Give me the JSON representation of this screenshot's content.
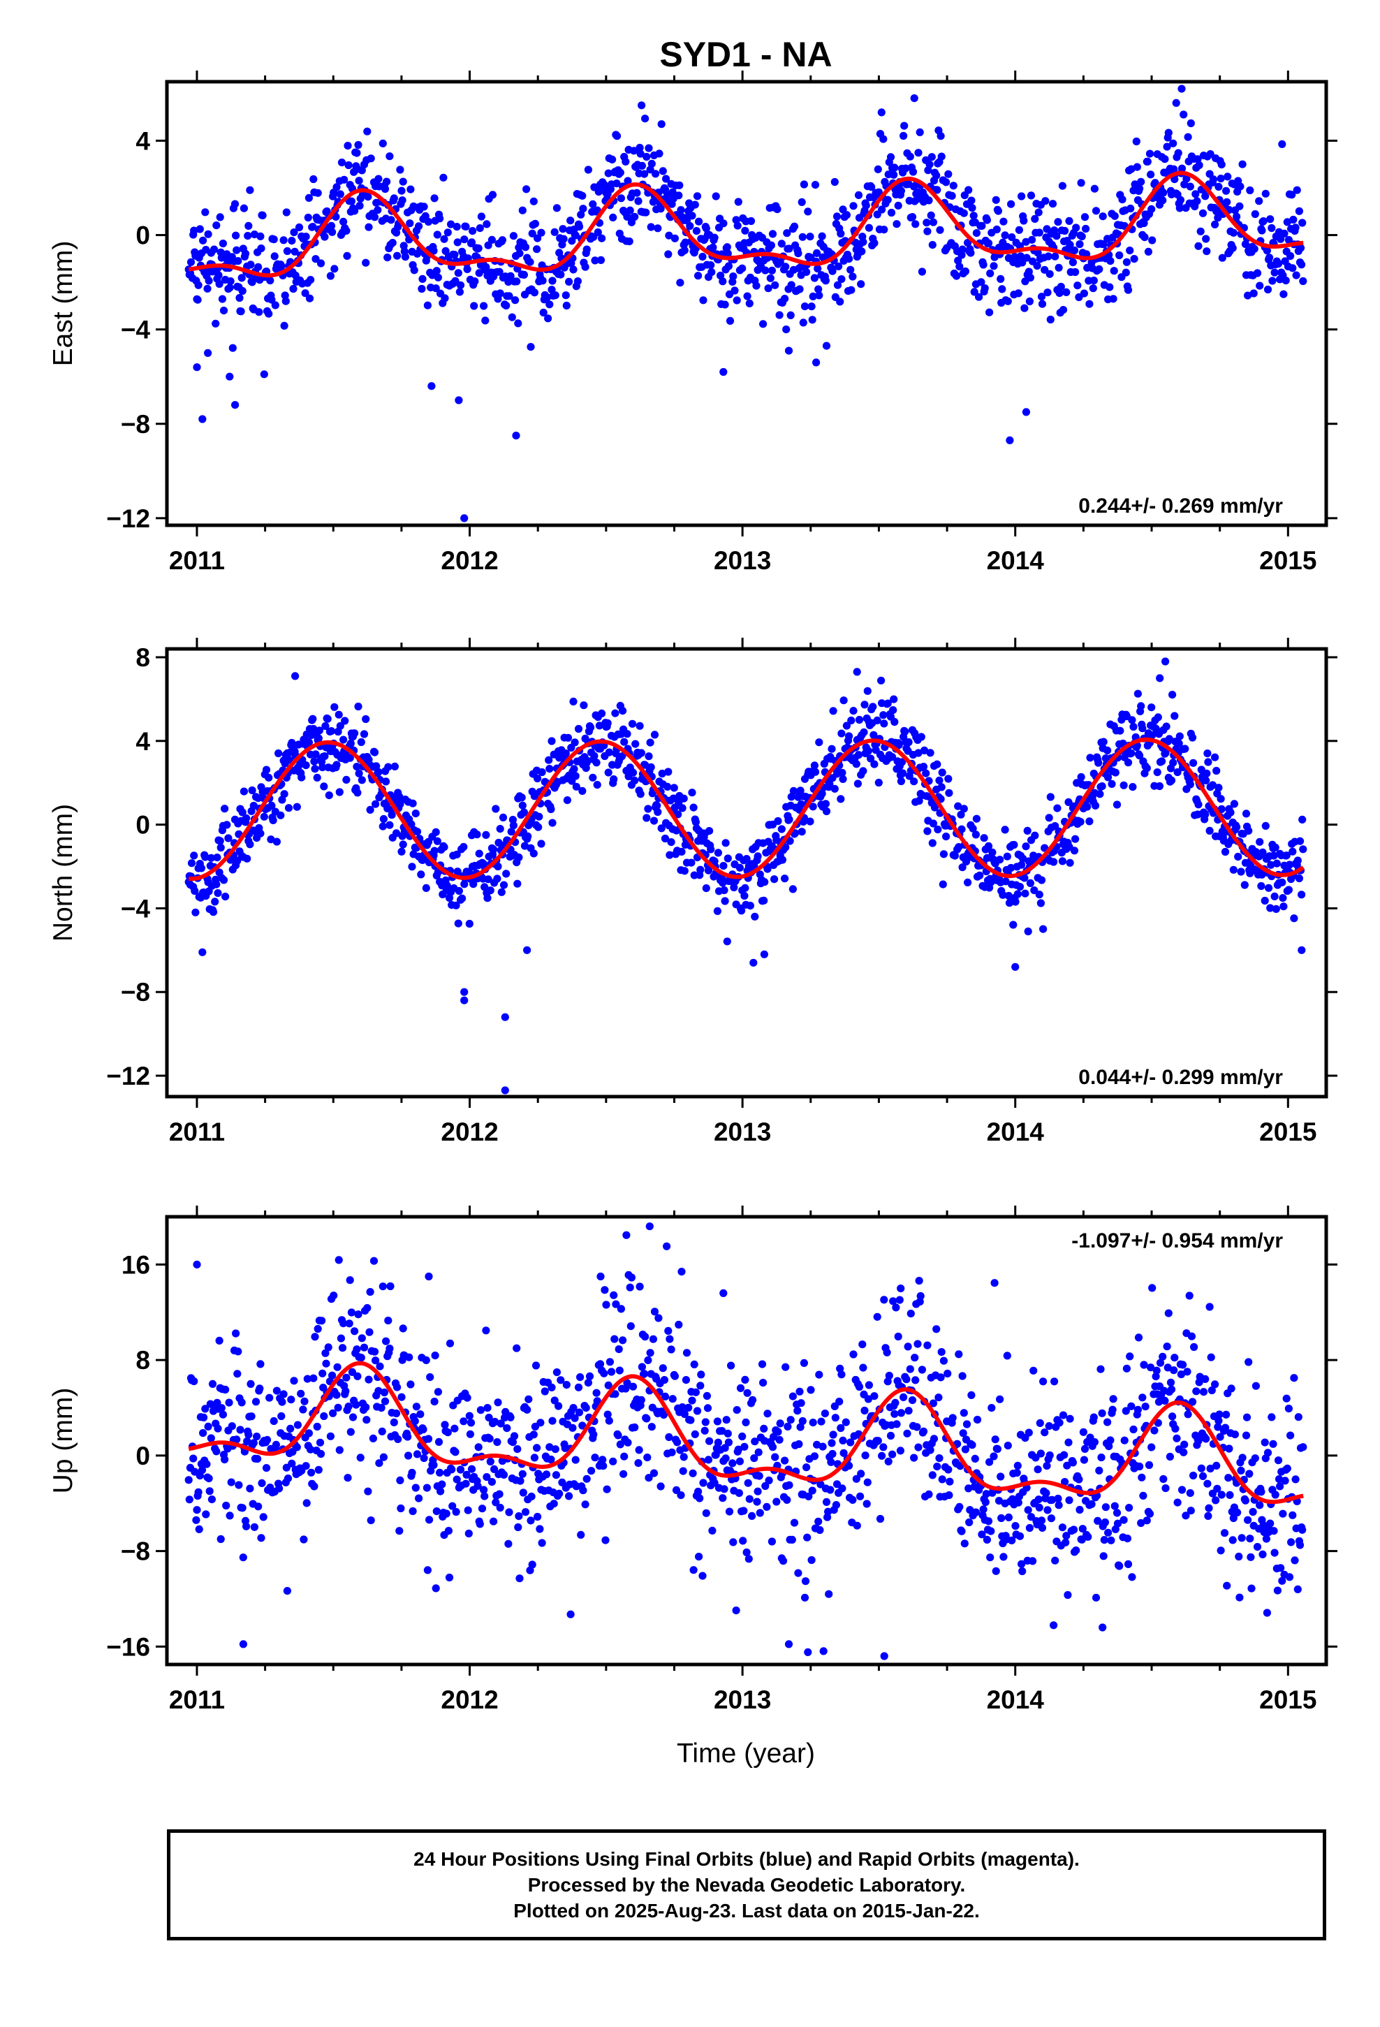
{
  "title": "SYD1 - NA",
  "xlabel": "Time (year)",
  "footer": {
    "line1": "24 Hour Positions Using Final Orbits (blue) and Rapid Orbits (magenta).",
    "line2": "Processed by the Nevada Geodetic Laboratory.",
    "line3": "Plotted on 2025-Aug-23. Last data on 2015-Jan-22."
  },
  "colors": {
    "points": "#0000ff",
    "model": "#ff0000",
    "axes": "#000000"
  },
  "chart_data": [
    {
      "type": "scatter",
      "component": "East",
      "ylabel": "East (mm)",
      "xlim": [
        2010.89,
        2015.14
      ],
      "ylim": [
        -12.3,
        6.5
      ],
      "xticks": [
        2011,
        2012,
        2013,
        2014,
        2015
      ],
      "yticks": [
        4,
        0,
        -4,
        -8,
        -12
      ],
      "rate_label": "0.244+/- 0.269 mm/yr",
      "model": {
        "offset": 0.0,
        "trend": 0.244,
        "annual": 1.55,
        "annual_peak": 0.62,
        "semiannual": 0.7,
        "semiannual_peak": 0.1
      },
      "scatter": 1.2,
      "outliers": [
        [
          2011.0,
          -5.6
        ],
        [
          2011.02,
          -7.8
        ],
        [
          2011.04,
          -5.0
        ],
        [
          2011.12,
          -6.0
        ],
        [
          2011.14,
          -7.2
        ],
        [
          2011.86,
          -6.4
        ],
        [
          2011.96,
          -7.0
        ],
        [
          2011.98,
          -12.0
        ],
        [
          2012.17,
          -8.5
        ],
        [
          2012.93,
          -5.8
        ],
        [
          2013.17,
          -4.9
        ],
        [
          2013.27,
          -5.4
        ],
        [
          2013.98,
          -8.7
        ],
        [
          2014.04,
          -7.5
        ],
        [
          2012.54,
          4.2
        ],
        [
          2012.63,
          5.5
        ],
        [
          2013.51,
          5.2
        ],
        [
          2013.63,
          5.8
        ],
        [
          2014.59,
          5.6
        ],
        [
          2014.61,
          6.2
        ]
      ]
    },
    {
      "type": "scatter",
      "component": "North",
      "ylabel": "North (mm)",
      "xlim": [
        2010.89,
        2015.14
      ],
      "ylim": [
        -13.0,
        8.4
      ],
      "xticks": [
        2011,
        2012,
        2013,
        2014,
        2015
      ],
      "yticks": [
        8,
        4,
        0,
        -4,
        -8,
        -12
      ],
      "rate_label": "0.044+/- 0.299 mm/yr",
      "model": {
        "offset": 0.75,
        "trend": 0.044,
        "annual": 3.25,
        "annual_peak": 0.48,
        "semiannual": 0.0,
        "semiannual_peak": 0.0
      },
      "scatter": 1.0,
      "outliers": [
        [
          2011.02,
          -6.1
        ],
        [
          2011.36,
          7.1
        ],
        [
          2011.98,
          -8.0
        ],
        [
          2011.98,
          -8.4
        ],
        [
          2012.13,
          -9.2
        ],
        [
          2012.13,
          -12.7
        ],
        [
          2012.21,
          -6.0
        ],
        [
          2013.04,
          -6.6
        ],
        [
          2013.08,
          -6.2
        ],
        [
          2013.42,
          7.3
        ],
        [
          2014.0,
          -6.8
        ],
        [
          2014.55,
          7.8
        ],
        [
          2014.53,
          7.0
        ],
        [
          2015.05,
          -6.0
        ]
      ]
    },
    {
      "type": "scatter",
      "component": "Up",
      "ylabel": "Up (mm)",
      "xlim": [
        2010.89,
        2015.14
      ],
      "ylim": [
        -17.5,
        20.0
      ],
      "xticks": [
        2011,
        2012,
        2013,
        2014,
        2015
      ],
      "yticks": [
        16,
        8,
        0,
        -8,
        -16
      ],
      "rate_label": "-1.097+/- 0.954 mm/yr",
      "model": {
        "offset": 0.9,
        "trend": -1.097,
        "annual": 3.6,
        "annual_peak": 0.6,
        "semiannual": 1.7,
        "semiannual_peak": 0.1
      },
      "scatter": 4.2,
      "outliers": [
        [
          2011.0,
          16.0
        ],
        [
          2011.17,
          -15.8
        ],
        [
          2011.85,
          15.0
        ],
        [
          2012.48,
          15.0
        ],
        [
          2012.66,
          19.2
        ],
        [
          2012.93,
          13.6
        ],
        [
          2013.17,
          -15.8
        ],
        [
          2013.52,
          -16.8
        ],
        [
          2013.58,
          14.0
        ],
        [
          2014.32,
          -14.4
        ],
        [
          2012.37,
          -13.3
        ]
      ]
    }
  ]
}
